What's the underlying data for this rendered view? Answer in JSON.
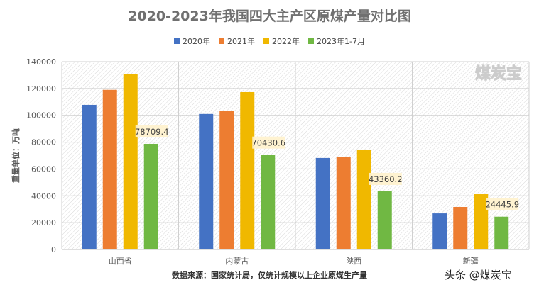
{
  "chart_data": {
    "type": "bar",
    "title": "2020-2023年我国四大主产区原煤产量对比图",
    "ylabel": "重量单位：万吨",
    "xlabel": "",
    "categories": [
      "山西省",
      "内蒙古",
      "陕西",
      "新疆"
    ],
    "ylim": [
      0,
      140000
    ],
    "yticks": [
      0,
      20000,
      40000,
      60000,
      80000,
      100000,
      120000,
      140000
    ],
    "grid": true,
    "legend": "top",
    "series": [
      {
        "name": "2020年",
        "color": "#4472c4",
        "values": [
          107800,
          101000,
          68200,
          26900
        ]
      },
      {
        "name": "2021年",
        "color": "#ed7d31",
        "values": [
          119000,
          103500,
          68700,
          31700
        ]
      },
      {
        "name": "2022年",
        "color": "#f0b800",
        "values": [
          130500,
          117300,
          74500,
          41200
        ]
      },
      {
        "name": "2023年1-7月",
        "color": "#70b843",
        "values": [
          78709.4,
          70430.6,
          43360.2,
          24445.9
        ],
        "labels": [
          "78709.4",
          "70430.6",
          "43360.2",
          "24445.9"
        ]
      }
    ]
  },
  "source": "数据来源：国家统计局，仅统计规模以上企业原煤生产量",
  "watermark_plot": "煤炭宝",
  "watermark_footer": "头条 @煤炭宝"
}
